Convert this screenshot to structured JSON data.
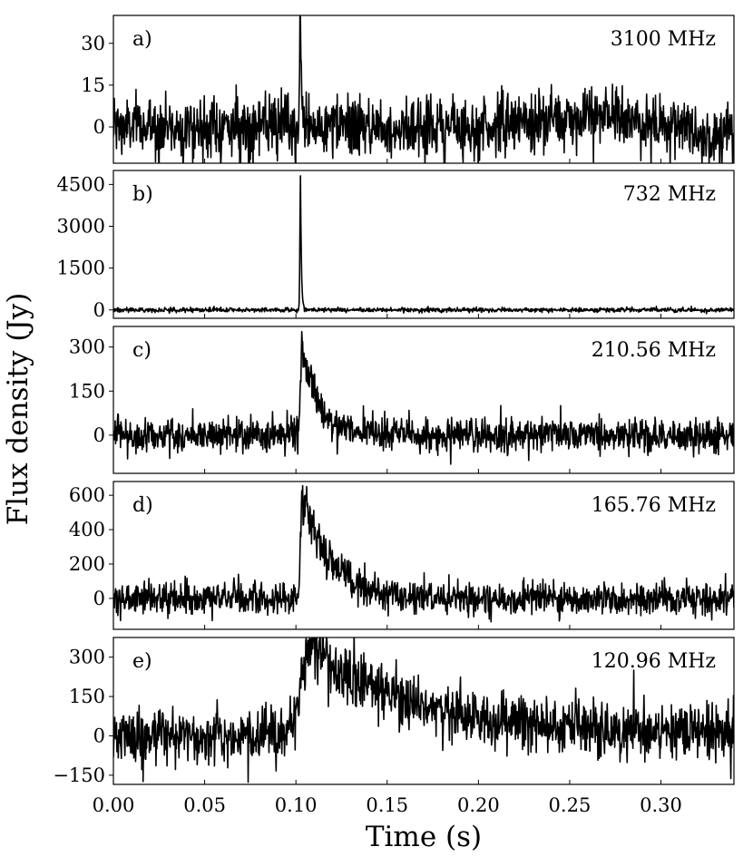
{
  "chart_data": {
    "type": "line",
    "xlabel": "Time (s)",
    "ylabel": "Flux density (Jy)",
    "xlim": [
      0.0,
      0.34
    ],
    "x_ticks": [
      0.0,
      0.05,
      0.1,
      0.15,
      0.2,
      0.25,
      0.3
    ],
    "x_tick_labels": [
      "0.00",
      "0.05",
      "0.10",
      "0.15",
      "0.20",
      "0.25",
      "0.30"
    ],
    "shared_x": true,
    "line_color": "#000000",
    "background": "#ffffff",
    "grid": false,
    "legend": "none",
    "panels": [
      {
        "tag": "a)",
        "label": "3100 MHz",
        "ylim": [
          -13,
          40
        ],
        "y_ticks": [
          0,
          15,
          30
        ],
        "y_tick_labels": [
          "0",
          "15",
          "30"
        ],
        "profile": {
          "baseline": 0,
          "noise_rms": 5.5,
          "peak_time": 0.1025,
          "peak_value": 37,
          "shape": "spike",
          "rise_s": 0.0004,
          "decay_s": 0.0006,
          "slow_trend": [
            [
              0.0,
              0
            ],
            [
              0.2,
              0
            ],
            [
              0.27,
              4
            ],
            [
              0.33,
              -3
            ],
            [
              0.34,
              0
            ]
          ]
        }
      },
      {
        "tag": "b)",
        "label": "732 MHz",
        "ylim": [
          -300,
          5000
        ],
        "y_ticks": [
          0,
          1500,
          3000,
          4500
        ],
        "y_tick_labels": [
          "0",
          "1500",
          "3000",
          "4500"
        ],
        "profile": {
          "baseline": 0,
          "noise_rms": 40,
          "peak_time": 0.1025,
          "peak_value": 4800,
          "shape": "spike",
          "rise_s": 0.0003,
          "decay_s": 0.0005,
          "slow_trend": [
            [
              0.0,
              0
            ],
            [
              0.34,
              0
            ]
          ]
        }
      },
      {
        "tag": "c)",
        "label": "210.56 MHz",
        "ylim": [
          -130,
          370
        ],
        "y_ticks": [
          0,
          150,
          300
        ],
        "y_tick_labels": [
          "0",
          "150",
          "300"
        ],
        "profile": {
          "baseline": 0,
          "noise_rms": 30,
          "peak_time": 0.1035,
          "peak_value": 330,
          "shape": "scattered",
          "rise_s": 0.0008,
          "decay_s": 0.008,
          "slow_trend": [
            [
              0.0,
              0
            ],
            [
              0.34,
              0
            ]
          ]
        }
      },
      {
        "tag": "d)",
        "label": "165.76 MHz",
        "ylim": [
          -180,
          680
        ],
        "y_ticks": [
          0,
          200,
          400,
          600
        ],
        "y_tick_labels": [
          "0",
          "200",
          "400",
          "600"
        ],
        "profile": {
          "baseline": 0,
          "noise_rms": 48,
          "peak_time": 0.1035,
          "peak_value": 580,
          "shape": "scattered",
          "rise_s": 0.001,
          "decay_s": 0.016,
          "slow_trend": [
            [
              0.0,
              0
            ],
            [
              0.34,
              0
            ]
          ]
        }
      },
      {
        "tag": "e)",
        "label": "120.96 MHz",
        "ylim": [
          -185,
          375
        ],
        "y_ticks": [
          -150,
          0,
          150,
          300
        ],
        "y_tick_labels": [
          "−150",
          "0",
          "150",
          "300"
        ],
        "profile": {
          "baseline": 0,
          "noise_rms": 52,
          "peak_time": 0.109,
          "peak_value": 330,
          "shape": "scattered",
          "rise_s": 0.006,
          "decay_s": 0.06,
          "slow_trend": [
            [
              0.0,
              0
            ],
            [
              0.34,
              0
            ]
          ]
        }
      }
    ]
  }
}
